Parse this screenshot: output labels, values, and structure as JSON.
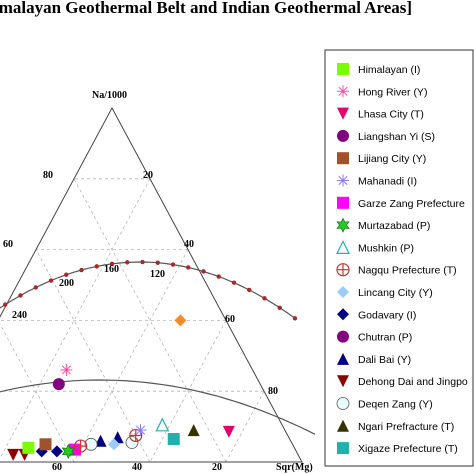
{
  "chart_data": {
    "type": "ternary",
    "title": "imalayan Geothermal Belt and Indian Geothermal Areas]",
    "apex_label": "Na/1000",
    "bottom_right_label": "Sqr(Mg)",
    "left_edge_ticks": [
      "80",
      "60"
    ],
    "right_edge_ticks": [
      "20",
      "40",
      "60",
      "80"
    ],
    "bottom_ticks": [
      "60",
      "40",
      "20"
    ],
    "left_cut_ticks": [
      "240"
    ],
    "curve_ticks": [
      "200",
      "160",
      "120"
    ],
    "series": [
      {
        "name": "Himalayan (I)",
        "marker": "square",
        "color": "#7cfc00"
      },
      {
        "name": "Hong River (Y)",
        "marker": "asterisk",
        "color": "#ff4da6"
      },
      {
        "name": "Lhasa City (T)",
        "marker": "triangle-down",
        "color": "#e6006e"
      },
      {
        "name": "Liangshan Yi (S)",
        "marker": "circle",
        "color": "#800080"
      },
      {
        "name": "Lijiang City (Y)",
        "marker": "square",
        "color": "#a0522d"
      },
      {
        "name": "Mahanadi (I)",
        "marker": "asterisk",
        "color": "#8a7cff"
      },
      {
        "name": "Garze Zang Prefecture",
        "marker": "square",
        "color": "#ff00ff"
      },
      {
        "name": "Murtazabad (P)",
        "marker": "star",
        "color": "#22cc22"
      },
      {
        "name": "Mushkin (P)",
        "marker": "triangle-up-open",
        "color": "#20b2aa"
      },
      {
        "name": "Nagqu Prefecture (T)",
        "marker": "circle-cross",
        "color": "#cc3333"
      },
      {
        "name": "Lincang City (Y)",
        "marker": "diamond",
        "color": "#99ccff"
      },
      {
        "name": "Godavary (I)",
        "marker": "diamond",
        "color": "#000080"
      },
      {
        "name": "Chutran (P)",
        "marker": "circle",
        "color": "#800080"
      },
      {
        "name": "Dali Bai (Y)",
        "marker": "triangle-up",
        "color": "#000080"
      },
      {
        "name": "Dehong Dai and Jingpo",
        "marker": "triangle-down",
        "color": "#8b0000"
      },
      {
        "name": "Deqen Zang (Y)",
        "marker": "circle-open",
        "color": "#99ffff"
      },
      {
        "name": "Ngari Prefracture (T)",
        "marker": "triangle-up",
        "color": "#333300"
      },
      {
        "name": "Xigaze Prefecture (T)",
        "marker": "square",
        "color": "#20b2aa"
      }
    ],
    "points": [
      {
        "series": 1,
        "u": 0.49,
        "v": 0.26
      },
      {
        "series": 3,
        "u": 0.53,
        "v": 0.22
      },
      {
        "series": 2,
        "u": 0.15,
        "v": 0.085
      },
      {
        "series": 16,
        "u": 0.24,
        "v": 0.09
      },
      {
        "series": 17,
        "u": 0.305,
        "v": 0.065
      },
      {
        "series": 8,
        "u": 0.315,
        "v": 0.105
      },
      {
        "series": 15,
        "u": 0.42,
        "v": 0.055
      },
      {
        "series": 9,
        "u": 0.4,
        "v": 0.075
      },
      {
        "series": 13,
        "u": 0.45,
        "v": 0.07
      },
      {
        "series": 13,
        "u": 0.5,
        "v": 0.06
      },
      {
        "series": 10,
        "u": 0.47,
        "v": 0.05
      },
      {
        "series": 5,
        "u": 0.38,
        "v": 0.09
      },
      {
        "series": 15,
        "u": 0.53,
        "v": 0.05
      },
      {
        "series": 6,
        "u": 0.58,
        "v": 0.035
      },
      {
        "series": 7,
        "u": 0.6,
        "v": 0.03
      },
      {
        "series": 11,
        "u": 0.63,
        "v": 0.03
      },
      {
        "series": 11,
        "u": 0.67,
        "v": 0.03
      },
      {
        "series": 4,
        "u": 0.65,
        "v": 0.05
      },
      {
        "series": 14,
        "u": 0.72,
        "v": 0.02
      },
      {
        "series": 14,
        "u": 0.75,
        "v": 0.02
      },
      {
        "series": 0,
        "u": 0.7,
        "v": 0.04
      },
      {
        "series": 12,
        "u": 0.81,
        "v": 0.015
      },
      {
        "series": 3,
        "u": 0.84,
        "v": 0.01
      },
      {
        "series": 9,
        "u": 0.56,
        "v": 0.045
      },
      {
        "series": 11,
        "u": 0.88,
        "v": 0.012
      },
      {
        "series": 11,
        "u": 0.92,
        "v": 0.008
      },
      {
        "series": 14,
        "u": 0.95,
        "v": 0.005
      }
    ],
    "extra_orange_point": {
      "color": "#f28c28",
      "u": 0.12,
      "v": 0.4
    },
    "grid": true,
    "legend_position": "right"
  }
}
